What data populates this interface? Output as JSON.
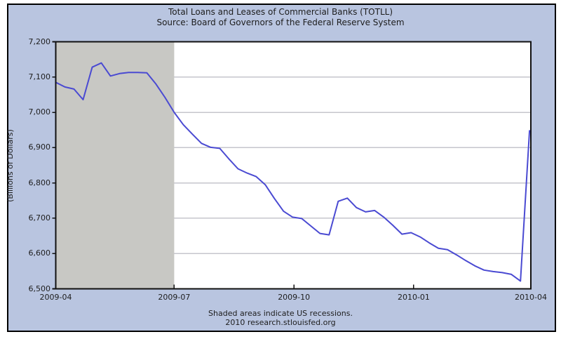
{
  "colors": {
    "background": "#b9c5e0",
    "plot_background": "#ffffff",
    "recession_shading": "#c8c8c4",
    "gridline": "#c6c6cc",
    "line": "#4a4ad2",
    "frame": "#111111",
    "text": "#1d1d1d",
    "outer_border": "#000000"
  },
  "chart_data": {
    "type": "line",
    "title": "Total Loans and Leases of Commercial Banks (TOTLL)",
    "subtitle": "Source: Board of Governors of the Federal Reserve System",
    "ylabel": "(Billions of Dollars)",
    "xlabel": "",
    "ylim": [
      6500,
      7200
    ],
    "xlim": [
      "2009-04-01",
      "2010-04-01"
    ],
    "grid": "horizontal-only",
    "legend": "none",
    "y_ticks": [
      {
        "value": 7200,
        "label": "7,200"
      },
      {
        "value": 7100,
        "label": "7,100"
      },
      {
        "value": 7000,
        "label": "7,000"
      },
      {
        "value": 6900,
        "label": "6,900"
      },
      {
        "value": 6800,
        "label": "6,800"
      },
      {
        "value": 6700,
        "label": "6,700"
      },
      {
        "value": 6600,
        "label": "6,600"
      },
      {
        "value": 6500,
        "label": "6,500"
      }
    ],
    "x_ticks": [
      {
        "date": "2009-04-01",
        "label": "2009-04"
      },
      {
        "date": "2009-07-01",
        "label": "2009-07"
      },
      {
        "date": "2009-10-01",
        "label": "2009-10"
      },
      {
        "date": "2010-01-01",
        "label": "2010-01"
      },
      {
        "date": "2010-04-01",
        "label": "2010-04"
      }
    ],
    "recession_bands": [
      {
        "start": "2009-04-01",
        "end": "2009-07-01"
      }
    ],
    "series": [
      {
        "name": "TOTLL",
        "frequency": "weekly",
        "dates": [
          "2009-04-01",
          "2009-04-08",
          "2009-04-15",
          "2009-04-22",
          "2009-04-29",
          "2009-05-06",
          "2009-05-13",
          "2009-05-20",
          "2009-05-27",
          "2009-06-03",
          "2009-06-10",
          "2009-06-17",
          "2009-06-24",
          "2009-07-01",
          "2009-07-08",
          "2009-07-15",
          "2009-07-22",
          "2009-07-29",
          "2009-08-05",
          "2009-08-12",
          "2009-08-19",
          "2009-08-26",
          "2009-09-02",
          "2009-09-09",
          "2009-09-16",
          "2009-09-23",
          "2009-09-30",
          "2009-10-07",
          "2009-10-14",
          "2009-10-21",
          "2009-10-28",
          "2009-11-04",
          "2009-11-11",
          "2009-11-18",
          "2009-11-25",
          "2009-12-02",
          "2009-12-09",
          "2009-12-16",
          "2009-12-23",
          "2009-12-30",
          "2010-01-06",
          "2010-01-13",
          "2010-01-20",
          "2010-01-27",
          "2010-02-03",
          "2010-02-10",
          "2010-02-17",
          "2010-02-24",
          "2010-03-03",
          "2010-03-10",
          "2010-03-17",
          "2010-03-24",
          "2010-03-31"
        ],
        "values": [
          7085,
          7072,
          7066,
          7036,
          7128,
          7140,
          7103,
          7110,
          7113,
          7113,
          7112,
          7080,
          7042,
          7000,
          6965,
          6938,
          6912,
          6901,
          6898,
          6868,
          6840,
          6828,
          6818,
          6795,
          6756,
          6720,
          6703,
          6699,
          6678,
          6657,
          6653,
          6748,
          6757,
          6730,
          6718,
          6722,
          6703,
          6680,
          6655,
          6659,
          6647,
          6630,
          6615,
          6611,
          6596,
          6580,
          6565,
          6553,
          6549,
          6546,
          6541,
          6522,
          6948
        ]
      }
    ],
    "footnote_line1": "Shaded areas indicate US recessions.",
    "footnote_line2": "2010 research.stlouisfed.org"
  }
}
